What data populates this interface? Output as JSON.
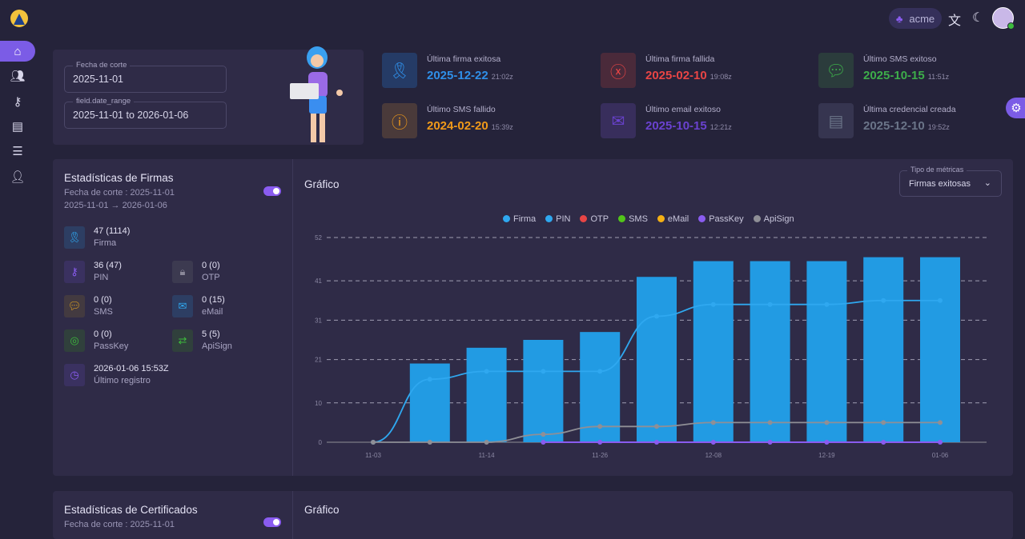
{
  "topbar": {
    "org": "acme"
  },
  "filters": {
    "cutoff_label": "Fecha de corte",
    "cutoff_value": "2025-11-01",
    "range_label": "field.date_range",
    "range_value": "2025-11-01 to 2026-01-06"
  },
  "stats": [
    {
      "title": "Última firma exitosa",
      "date": "2025-12-22",
      "time": "21:02z",
      "color": "#2f8fe8",
      "bg": "#253b66",
      "icon": "ribbon-icon"
    },
    {
      "title": "Última firma fallida",
      "date": "2025-02-10",
      "time": "19:08z",
      "color": "#e84545",
      "bg": "#4a2a3a",
      "icon": "x-circle-icon"
    },
    {
      "title": "Último SMS exitoso",
      "date": "2025-10-15",
      "time": "11:51z",
      "color": "#3dad4a",
      "bg": "#2b3c3c",
      "icon": "message-icon"
    },
    {
      "title": "Último SMS fallido",
      "date": "2024-02-20",
      "time": "15:39z",
      "color": "#f09a1a",
      "bg": "#4a3a3a",
      "icon": "alert-icon"
    },
    {
      "title": "Último email exitoso",
      "date": "2025-10-15",
      "time": "12:21z",
      "color": "#6a42d0",
      "bg": "#382e5c",
      "icon": "mail-icon"
    },
    {
      "title": "Última credencial creada",
      "date": "2025-12-10",
      "time": "19:52z",
      "color": "#6a7488",
      "bg": "#363550",
      "icon": "id-card-icon"
    }
  ],
  "firmas": {
    "title": "Estadísticas de Firmas",
    "cutoff": "Fecha de corte : 2025-11-01",
    "range": "2025-11-01 → 2026-01-06",
    "metrics": [
      {
        "value": "47 (1114)",
        "label": "Firma",
        "color": "#2fa8f0",
        "bg": "#2d3e63"
      },
      {
        "value": "36 (47)",
        "label": "PIN",
        "color": "#8a5cf0",
        "bg": "#3a3160"
      },
      {
        "value": "0 (0)",
        "label": "OTP",
        "color": "#8a8898",
        "bg": "#3c3a50"
      },
      {
        "value": "0 (0)",
        "label": "SMS",
        "color": "#e8a820",
        "bg": "#433a40"
      },
      {
        "value": "0 (15)",
        "label": "eMail",
        "color": "#2fa8f0",
        "bg": "#2d3e63"
      },
      {
        "value": "0 (0)",
        "label": "PassKey",
        "color": "#3dbb3d",
        "bg": "#30403c"
      },
      {
        "value": "5 (5)",
        "label": "ApiSign",
        "color": "#3dbb3d",
        "bg": "#30403c"
      },
      {
        "value": "2026-01-06 15:53Z",
        "label": "Último registro",
        "color": "#8a5cf0",
        "bg": "#3a3160"
      }
    ],
    "chart_title": "Gráfico",
    "select_label": "Tipo de métricas",
    "select_value": "Firmas exitosas"
  },
  "certs": {
    "title": "Estadísticas de Certificados",
    "cutoff": "Fecha de corte : 2025-11-01",
    "chart_title": "Gráfico"
  },
  "chart_data": {
    "type": "bar",
    "x_tick_labels": [
      "11-03",
      "",
      "11-14",
      "",
      "11-26",
      "",
      "12-08",
      "",
      "12-19",
      "",
      "01-06"
    ],
    "yticks": [
      0,
      10,
      21,
      31,
      41,
      52
    ],
    "ylim": [
      0,
      52
    ],
    "legend": [
      {
        "name": "Firma",
        "color": "#2fa8f0"
      },
      {
        "name": "PIN",
        "color": "#2fa8f0"
      },
      {
        "name": "OTP",
        "color": "#e84545"
      },
      {
        "name": "SMS",
        "color": "#52c41a"
      },
      {
        "name": "eMail",
        "color": "#f5b014"
      },
      {
        "name": "PassKey",
        "color": "#8a5cf0"
      },
      {
        "name": "ApiSign",
        "color": "#8f8f96"
      }
    ],
    "series": [
      {
        "name": "Firma",
        "kind": "bar",
        "color": "#229be3",
        "values": [
          0,
          20,
          24,
          26,
          28,
          42,
          46,
          46,
          46,
          47,
          47
        ]
      },
      {
        "name": "PIN",
        "kind": "line",
        "color": "#2fa8f0",
        "values": [
          0,
          16,
          18,
          18,
          18,
          32,
          35,
          35,
          35,
          36,
          36
        ]
      },
      {
        "name": "PassKey",
        "kind": "line",
        "color": "#8a5cf0",
        "values": [
          0,
          0,
          0,
          0,
          0,
          0,
          0,
          0,
          0,
          0,
          0
        ]
      },
      {
        "name": "ApiSign",
        "kind": "line",
        "color": "#8f8f96",
        "values": [
          0,
          0,
          0,
          2,
          4,
          4,
          5,
          5,
          5,
          5,
          5
        ]
      }
    ]
  }
}
